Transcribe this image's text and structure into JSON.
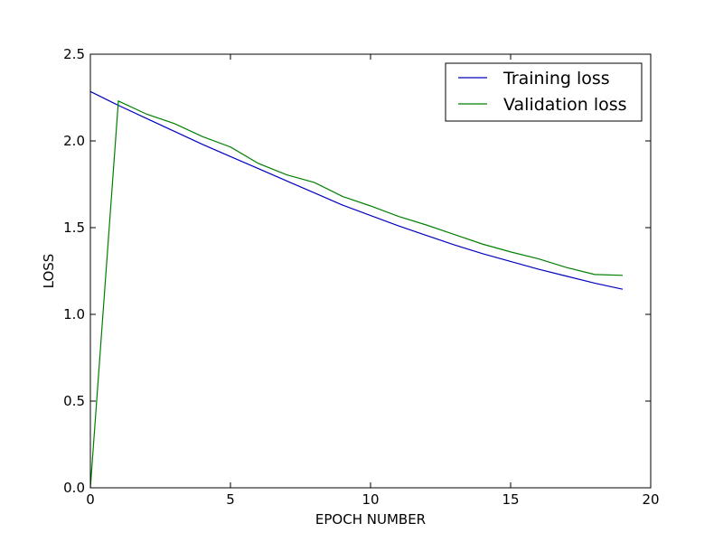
{
  "chart_data": {
    "type": "line",
    "title": "",
    "xlabel": "EPOCH NUMBER",
    "ylabel": "LOSS",
    "xlim": [
      0,
      20
    ],
    "ylim": [
      0,
      2.5
    ],
    "xticks": [
      "0",
      "5",
      "10",
      "15",
      "20"
    ],
    "yticks": [
      "0.0",
      "0.5",
      "1.0",
      "1.5",
      "2.0",
      "2.5"
    ],
    "grid": false,
    "legend_position": "top-right",
    "x": [
      0,
      1,
      2,
      3,
      4,
      5,
      6,
      7,
      8,
      9,
      10,
      11,
      12,
      13,
      14,
      15,
      16,
      17,
      18,
      19
    ],
    "series": [
      {
        "name": "Training loss",
        "color": "#0000bf",
        "values": [
          2.285,
          2.205,
          2.13,
          2.055,
          1.98,
          1.91,
          1.84,
          1.77,
          1.7,
          1.63,
          1.57,
          1.51,
          1.455,
          1.4,
          1.35,
          1.305,
          1.26,
          1.22,
          1.18,
          1.145
        ]
      },
      {
        "name": "Validation loss",
        "color": "#007f00",
        "values": [
          0.0,
          2.23,
          2.155,
          2.1,
          2.025,
          1.965,
          1.87,
          1.805,
          1.76,
          1.68,
          1.625,
          1.565,
          1.515,
          1.46,
          1.405,
          1.36,
          1.32,
          1.27,
          1.23,
          1.225
        ]
      }
    ]
  }
}
